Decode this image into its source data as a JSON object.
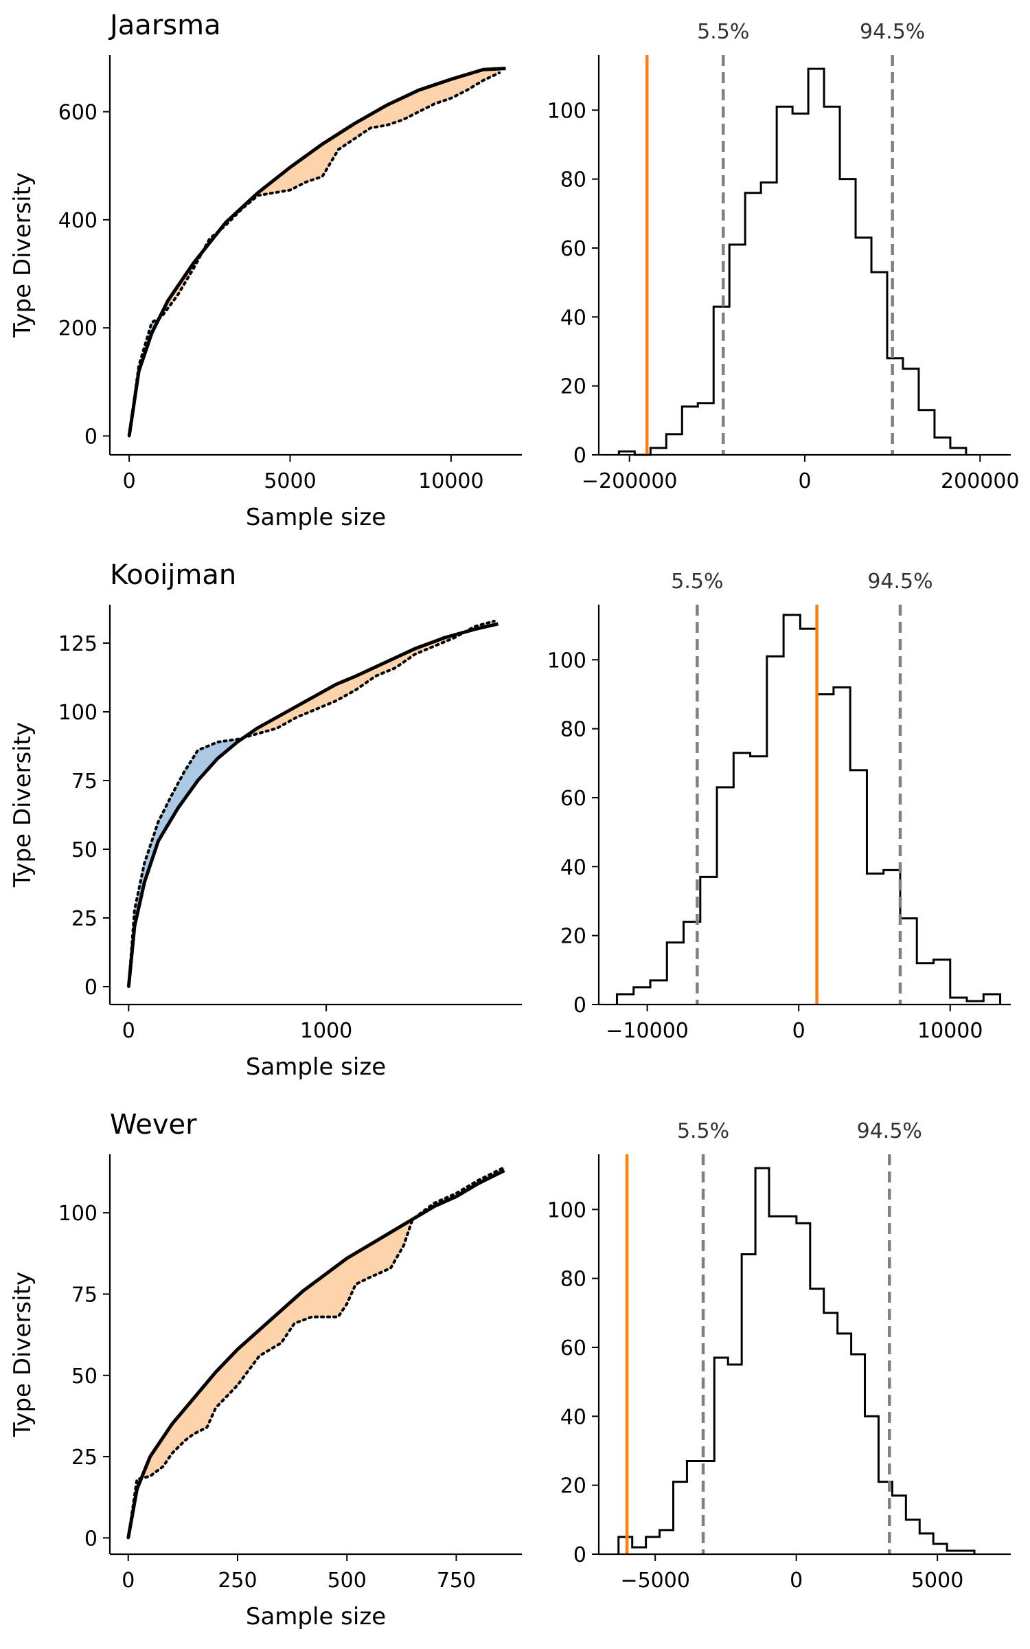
{
  "chart_data": [
    {
      "type": "line",
      "title": "Jaarsma",
      "xlabel": "Sample size",
      "ylabel": "Type Diversity",
      "xlim": [
        -600,
        12200
      ],
      "ylim": [
        -35,
        705
      ],
      "xticks": [
        0,
        5000,
        10000
      ],
      "yticks": [
        0,
        200,
        400,
        600
      ],
      "series": [
        {
          "style": "solid",
          "x": [
            0,
            300,
            700,
            1200,
            2000,
            3000,
            4000,
            5000,
            6000,
            7000,
            8000,
            9000,
            10000,
            11000,
            11700
          ],
          "y": [
            0,
            120,
            190,
            250,
            320,
            395,
            450,
            497,
            540,
            578,
            612,
            640,
            660,
            678,
            680
          ]
        },
        {
          "style": "dotted",
          "x": [
            0,
            300,
            700,
            1000,
            1500,
            2000,
            2500,
            3000,
            3500,
            4000,
            4500,
            5000,
            5500,
            6000,
            6500,
            7000,
            7500,
            8000,
            8500,
            9000,
            9500,
            10000,
            10500,
            11000,
            11500
          ],
          "y": [
            0,
            130,
            210,
            220,
            260,
            310,
            365,
            390,
            420,
            445,
            450,
            455,
            470,
            480,
            530,
            550,
            570,
            575,
            585,
            600,
            615,
            625,
            640,
            658,
            672
          ]
        }
      ],
      "fill": {
        "above": "#abc8e4",
        "below": "#fdd3ab"
      }
    },
    {
      "type": "histogram",
      "bins": [
        -200000,
        -180000,
        -160000,
        -140000,
        -120000,
        -100000,
        -80000,
        -60000,
        -40000,
        -20000,
        0,
        20000,
        40000,
        60000,
        80000,
        100000,
        120000,
        140000,
        160000,
        180000,
        200000,
        220000
      ],
      "counts": [
        1,
        0,
        2,
        6,
        14,
        15,
        43,
        61,
        76,
        79,
        101,
        99,
        112,
        101,
        80,
        63,
        53,
        28,
        25,
        13,
        5,
        2
      ],
      "bin_start": -212000,
      "bin_width": 18000,
      "xlim": [
        -235000,
        235000
      ],
      "ylim": [
        0,
        116
      ],
      "xticks": [
        -200000,
        0,
        200000
      ],
      "xtick_labels": [
        "−200000",
        "0",
        "200000"
      ],
      "yticks": [
        0,
        20,
        40,
        60,
        80,
        100
      ],
      "observed": -180000,
      "lower_pct": {
        "value": -93000,
        "label": "5.5%"
      },
      "upper_pct": {
        "value": 100000,
        "label": "94.5%"
      }
    },
    {
      "type": "line",
      "title": "Kooijman",
      "xlabel": "Sample size",
      "ylabel": "Type Diversity",
      "xlim": [
        -95,
        1990
      ],
      "ylim": [
        -6.5,
        139
      ],
      "xticks": [
        0,
        1000
      ],
      "yticks": [
        0,
        25,
        50,
        75,
        100,
        125
      ],
      "series": [
        {
          "style": "solid",
          "x": [
            0,
            30,
            80,
            150,
            250,
            350,
            450,
            550,
            650,
            750,
            850,
            950,
            1050,
            1150,
            1300,
            1450,
            1600,
            1750,
            1870
          ],
          "y": [
            0,
            22,
            38,
            53,
            65,
            75,
            83,
            89,
            94,
            98,
            102,
            106,
            110,
            113,
            118,
            123,
            127,
            130,
            132
          ]
        },
        {
          "style": "dotted",
          "x": [
            0,
            30,
            80,
            150,
            220,
            280,
            350,
            450,
            550,
            650,
            750,
            850,
            950,
            1050,
            1150,
            1250,
            1350,
            1450,
            1550,
            1650,
            1750,
            1850
          ],
          "y": [
            0,
            28,
            45,
            60,
            70,
            78,
            86,
            89,
            90,
            92,
            94,
            98,
            101,
            104,
            108,
            113,
            116,
            121,
            124,
            127,
            131,
            133
          ]
        }
      ],
      "fill": {
        "above": "#abc8e4",
        "below": "#fdd3ab"
      }
    },
    {
      "type": "histogram",
      "bins": [
        -11000,
        -10000,
        -9000,
        -8000,
        -7000,
        -6000,
        -5000,
        -4000,
        -3000,
        -2000,
        -1000,
        0,
        1000,
        2000,
        3000,
        4000,
        5000,
        6000,
        7000,
        8000,
        9000,
        10000,
        11000,
        12000
      ],
      "counts": [
        3,
        5,
        7,
        18,
        24,
        37,
        63,
        73,
        72,
        101,
        113,
        109,
        90,
        92,
        68,
        38,
        39,
        25,
        12,
        13,
        2,
        1,
        3
      ],
      "bin_start": -12000,
      "bin_width": 1100,
      "xlim": [
        -13200,
        14000
      ],
      "ylim": [
        0,
        116
      ],
      "xticks": [
        -10000,
        0,
        10000
      ],
      "xtick_labels": [
        "−10000",
        "0",
        "10000"
      ],
      "yticks": [
        0,
        20,
        40,
        60,
        80,
        100
      ],
      "observed": 1200,
      "lower_pct": {
        "value": -6700,
        "label": "5.5%"
      },
      "upper_pct": {
        "value": 6700,
        "label": "94.5%"
      }
    },
    {
      "type": "line",
      "title": "Wever",
      "xlabel": "Sample size",
      "ylabel": "Type Diversity",
      "xlim": [
        -42,
        900
      ],
      "ylim": [
        -5,
        118
      ],
      "xticks": [
        0,
        250,
        500,
        750
      ],
      "yticks": [
        0,
        25,
        50,
        75,
        100
      ],
      "series": [
        {
          "style": "solid",
          "x": [
            0,
            20,
            50,
            100,
            150,
            200,
            250,
            300,
            350,
            400,
            450,
            500,
            550,
            600,
            650,
            700,
            750,
            800,
            860
          ],
          "y": [
            0,
            15,
            25,
            35,
            43,
            51,
            58,
            64,
            70,
            76,
            81,
            86,
            90,
            94,
            98,
            102,
            105,
            109,
            113
          ]
        },
        {
          "style": "dotted",
          "x": [
            0,
            20,
            50,
            80,
            100,
            130,
            150,
            180,
            200,
            250,
            300,
            350,
            380,
            420,
            450,
            480,
            500,
            520,
            550,
            600,
            630,
            650,
            700,
            750,
            800,
            860
          ],
          "y": [
            0,
            18,
            19,
            22,
            26,
            30,
            32,
            34,
            40,
            47,
            56,
            60,
            66,
            68,
            68,
            68,
            72,
            78,
            80,
            83,
            90,
            98,
            103,
            106,
            110,
            114
          ]
        }
      ],
      "fill": {
        "above": "#abc8e4",
        "below": "#fdd3ab"
      }
    },
    {
      "type": "histogram",
      "bins": [
        -6000,
        -5500,
        -5000,
        -4500,
        -4000,
        -3500,
        -3000,
        -2500,
        -2000,
        -1500,
        -1000,
        -500,
        0,
        500,
        1000,
        1500,
        2000,
        2500,
        3000,
        3500,
        4000,
        4500,
        5000,
        5500,
        6000,
        6500
      ],
      "counts": [
        5,
        2,
        5,
        7,
        21,
        27,
        27,
        57,
        55,
        87,
        112,
        98,
        98,
        96,
        77,
        70,
        64,
        58,
        40,
        21,
        17,
        10,
        6,
        3,
        1,
        1
      ],
      "bin_start": -6300,
      "bin_width": 485,
      "xlim": [
        -7000,
        7600
      ],
      "ylim": [
        0,
        116
      ],
      "xticks": [
        -5000,
        0,
        5000
      ],
      "xtick_labels": [
        "−5000",
        "0",
        "5000"
      ],
      "yticks": [
        0,
        20,
        40,
        60,
        80,
        100
      ],
      "observed": -6000,
      "lower_pct": {
        "value": -3300,
        "label": "5.5%"
      },
      "upper_pct": {
        "value": 3300,
        "label": "94.5%"
      }
    }
  ],
  "colors": {
    "observed": "#ff7f0e",
    "percentile": "#808080",
    "fill_above": "#abc8e4",
    "fill_below": "#fdd3ab",
    "line": "#000000"
  }
}
